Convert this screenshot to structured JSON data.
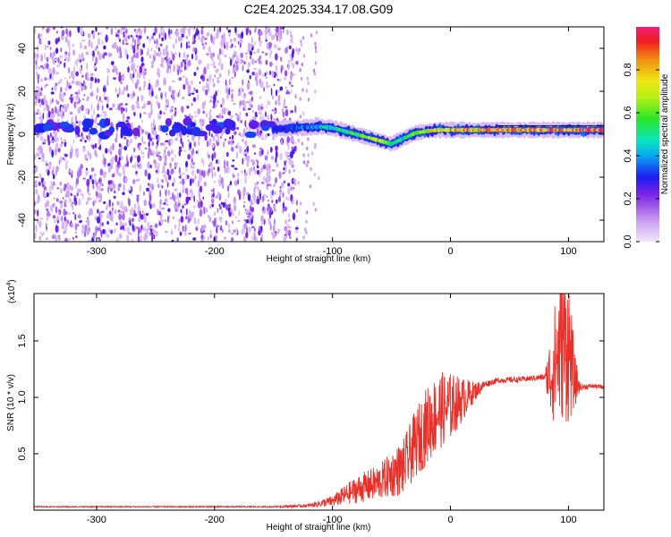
{
  "title": "C2E4.2025.334.17.08.G09",
  "chart_data": [
    {
      "type": "heatmap",
      "xlabel": "Height of straight line (km)",
      "ylabel": "Frequency (Hz)",
      "xlim": [
        -353,
        130
      ],
      "ylim": [
        -50,
        50
      ],
      "xticks": [
        -300,
        -200,
        -100,
        0,
        100
      ],
      "yticks": [
        -40,
        -20,
        0,
        20,
        40
      ],
      "colorbar": {
        "label": "Normalized spectral amplitude",
        "range": [
          0,
          1
        ],
        "ticks": [
          0.0,
          0.2,
          0.4,
          0.6,
          0.8
        ],
        "tick_labels": [
          "0.0",
          "0.2",
          "0.4",
          "0.6",
          "0.8"
        ]
      },
      "noise_region": {
        "x_from": -353,
        "x_to": -130,
        "level": 0.12
      },
      "ridge_line": {
        "x": [
          -150,
          -130,
          -110,
          -100,
          -90,
          -80,
          -70,
          -60,
          -50,
          -40,
          -30,
          -20,
          -10,
          0,
          10,
          20,
          40,
          60,
          80,
          90,
          100,
          110,
          130
        ],
        "y": [
          2.5,
          3,
          3.5,
          3,
          1.5,
          0,
          -1.5,
          -3,
          -4.5,
          -2,
          0.5,
          1.5,
          2,
          2,
          2,
          2,
          2,
          2,
          2,
          2,
          2,
          2,
          2
        ],
        "amplitude": [
          0.25,
          0.35,
          0.45,
          0.5,
          0.55,
          0.6,
          0.65,
          0.7,
          0.55,
          0.5,
          0.6,
          0.75,
          0.8,
          0.85,
          0.85,
          0.85,
          0.85,
          0.9,
          0.9,
          0.95,
          0.95,
          1.0,
          1.0
        ]
      }
    },
    {
      "type": "line",
      "xlabel": "Height of straight line (km)",
      "ylabel": "SNR (10 * v/v)",
      "scale_label": "(x10",
      "scale_exponent": "4",
      "scale_suffix": ")",
      "xlim": [
        -353,
        130
      ],
      "ylim": [
        0,
        19200
      ],
      "xticks": [
        -300,
        -200,
        -100,
        0,
        100
      ],
      "yticks": [
        5000,
        10000,
        15000
      ],
      "ytick_labels": [
        "0.5",
        "1.0",
        "1.5"
      ],
      "color": "#e8302a",
      "series": [
        {
          "x": [
            -353,
            -150,
            -120,
            -100,
            -80,
            -60,
            -40,
            -30,
            -20,
            -10,
            0,
            10,
            20,
            30,
            40,
            60,
            70,
            80,
            85,
            90,
            95,
            100,
            105,
            110,
            120,
            130
          ],
          "y": [
            300,
            300,
            400,
            800,
            1800,
            2500,
            3800,
            5800,
            7500,
            8800,
            9200,
            9800,
            10500,
            11200,
            11500,
            11600,
            11700,
            11800,
            12000,
            13500,
            15000,
            14500,
            11500,
            10900,
            11000,
            10900
          ],
          "noise": [
            50,
            60,
            150,
            500,
            1200,
            1600,
            2500,
            3000,
            3500,
            3500,
            3000,
            2000,
            900,
            300,
            250,
            250,
            250,
            300,
            4000,
            6000,
            7000,
            7000,
            2500,
            300,
            200,
            200
          ]
        }
      ]
    }
  ]
}
